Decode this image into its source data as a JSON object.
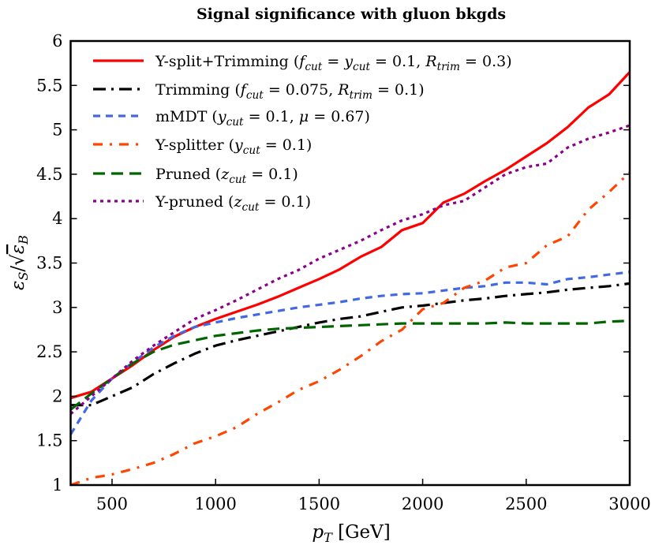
{
  "chart_data": {
    "type": "line",
    "title": "Signal significance with gluon bkgds",
    "xlabel": "p_{T} [GeV]",
    "ylabel": "ε_{S}/√ε_{B}",
    "xlim": [
      300,
      3000
    ],
    "ylim": [
      1,
      6
    ],
    "xticks": [
      500,
      1000,
      1500,
      2000,
      2500,
      3000
    ],
    "yticks": [
      1,
      1.5,
      2,
      2.5,
      3,
      3.5,
      4,
      4.5,
      5,
      5.5,
      6
    ],
    "grid": false,
    "legend_placement": "top-left",
    "x": [
      300,
      400,
      500,
      600,
      700,
      800,
      900,
      1000,
      1100,
      1200,
      1300,
      1400,
      1500,
      1600,
      1700,
      1800,
      1900,
      2000,
      2100,
      2200,
      2300,
      2400,
      2500,
      2600,
      2700,
      2800,
      2900,
      3000
    ],
    "series": [
      {
        "name": "Y-split+Trimming (f_{cut} = y_{cut} = 0.1, R_{trim} = 0.3)",
        "color": "#ff0000",
        "style": "solid",
        "values": [
          1.98,
          2.05,
          2.2,
          2.35,
          2.52,
          2.67,
          2.78,
          2.87,
          2.95,
          3.03,
          3.12,
          3.22,
          3.32,
          3.43,
          3.57,
          3.68,
          3.87,
          3.95,
          4.18,
          4.28,
          4.42,
          4.55,
          4.7,
          4.85,
          5.03,
          5.25,
          5.4,
          5.65
        ]
      },
      {
        "name": "Trimming (f_{cut} = 0.075, R_{trim} = 0.1)",
        "color": "#000000",
        "style": "dashdot-long",
        "values": [
          1.9,
          1.9,
          2.0,
          2.1,
          2.25,
          2.37,
          2.48,
          2.57,
          2.63,
          2.68,
          2.73,
          2.78,
          2.83,
          2.87,
          2.9,
          2.95,
          3.0,
          3.02,
          3.05,
          3.08,
          3.1,
          3.13,
          3.15,
          3.17,
          3.2,
          3.22,
          3.24,
          3.27
        ]
      },
      {
        "name": "mMDT (y_{cut} = 0.1, μ = 0.67)",
        "color": "#4169e1",
        "style": "dashed-short",
        "values": [
          1.57,
          1.95,
          2.2,
          2.38,
          2.55,
          2.68,
          2.78,
          2.83,
          2.88,
          2.92,
          2.96,
          3.0,
          3.03,
          3.06,
          3.1,
          3.13,
          3.15,
          3.16,
          3.19,
          3.22,
          3.24,
          3.28,
          3.28,
          3.26,
          3.32,
          3.34,
          3.37,
          3.4
        ]
      },
      {
        "name": "Y-splitter (y_{cut} = 0.1)",
        "color": "#ff4500",
        "style": "dashdot",
        "values": [
          1.0,
          1.08,
          1.12,
          1.18,
          1.25,
          1.35,
          1.47,
          1.55,
          1.65,
          1.8,
          1.93,
          2.07,
          2.17,
          2.3,
          2.45,
          2.62,
          2.75,
          2.98,
          3.05,
          3.22,
          3.3,
          3.45,
          3.5,
          3.7,
          3.8,
          4.1,
          4.3,
          4.52
        ]
      },
      {
        "name": "Pruned (z_{cut} = 0.1)",
        "color": "#006400",
        "style": "dashed-long",
        "values": [
          1.85,
          2.03,
          2.2,
          2.37,
          2.5,
          2.58,
          2.63,
          2.68,
          2.71,
          2.74,
          2.76,
          2.77,
          2.78,
          2.79,
          2.8,
          2.81,
          2.82,
          2.82,
          2.82,
          2.82,
          2.82,
          2.83,
          2.82,
          2.82,
          2.82,
          2.82,
          2.84,
          2.85
        ]
      },
      {
        "name": "Y-pruned (z_{cut} = 0.1)",
        "color": "#8b008b",
        "style": "dotted",
        "values": [
          1.8,
          2.0,
          2.2,
          2.4,
          2.57,
          2.72,
          2.87,
          2.97,
          3.08,
          3.2,
          3.32,
          3.42,
          3.55,
          3.65,
          3.75,
          3.87,
          3.98,
          4.05,
          4.15,
          4.2,
          4.35,
          4.5,
          4.58,
          4.62,
          4.8,
          4.9,
          4.97,
          5.05
        ]
      }
    ]
  }
}
